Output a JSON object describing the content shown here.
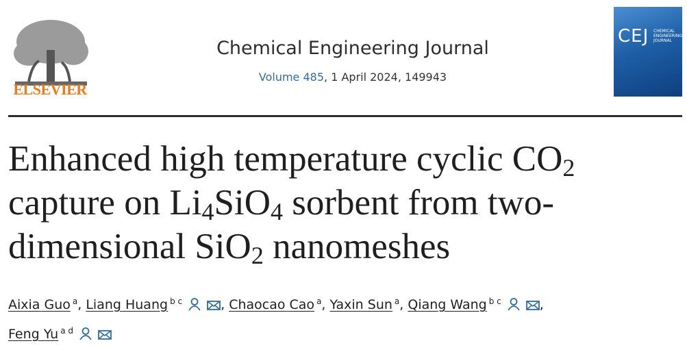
{
  "header": {
    "publisher": "ELSEVIER",
    "journal": "Chemical Engineering Journal",
    "volume": "Volume 485",
    "issue_info": ", 1 April 2024, 149943",
    "cover": {
      "acronym": "CEJ",
      "name": "CHEMICAL ENGINEERING JOURNAL"
    }
  },
  "article": {
    "title_parts": [
      "Enhanced high temperature cyclic CO",
      "2",
      "capture on Li",
      "4",
      "SiO",
      "4",
      " sorbent from two-",
      "dimensional SiO",
      "2",
      " nanomeshes"
    ],
    "authors": [
      {
        "name": "Aixia Guo",
        "affiliations": "a",
        "separator": ","
      },
      {
        "name": "Liang Huang",
        "affiliations": "b c",
        "separator": ","
      },
      {
        "name": "Chaocao Cao",
        "affiliations": "a",
        "separator": ","
      },
      {
        "name": "Yaxin Sun",
        "affiliations": "a",
        "separator": ","
      },
      {
        "name": "Qiang Wang",
        "affiliations": "b c",
        "separator": ","
      },
      {
        "name": "Feng Yu",
        "affiliations": "a d"
      }
    ]
  }
}
